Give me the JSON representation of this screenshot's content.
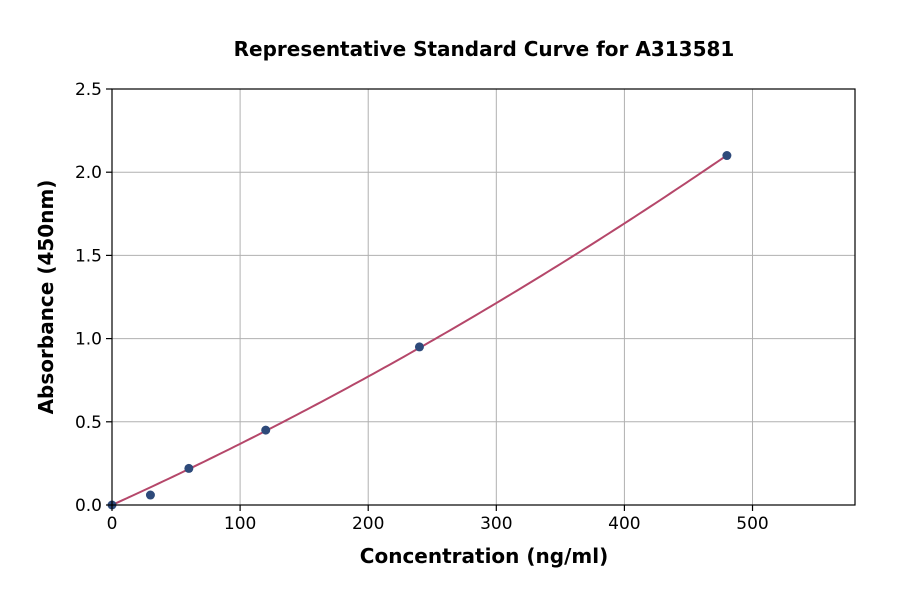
{
  "chart_data": {
    "type": "scatter",
    "title": "Representative Standard Curve for A313581",
    "xlabel": "Concentration (ng/ml)",
    "ylabel": "Absorbance (450nm)",
    "xlim": [
      0,
      580
    ],
    "ylim": [
      0,
      2.5
    ],
    "xticks": [
      0,
      100,
      200,
      300,
      400,
      500
    ],
    "yticks": [
      0.0,
      0.5,
      1.0,
      1.5,
      2.0,
      2.5
    ],
    "xtick_labels": [
      "0",
      "100",
      "200",
      "300",
      "400",
      "500"
    ],
    "ytick_labels": [
      "0.0",
      "0.5",
      "1.0",
      "1.5",
      "2.0",
      "2.5"
    ],
    "grid": true,
    "series": [
      {
        "x": [
          0,
          30,
          60,
          120,
          240,
          480
        ],
        "y": [
          0.0,
          0.06,
          0.22,
          0.45,
          0.95,
          2.1
        ],
        "color": "#2e4a7a"
      }
    ],
    "fit_curve": {
      "x_range": [
        0,
        480
      ],
      "color": "#b5476a"
    }
  }
}
